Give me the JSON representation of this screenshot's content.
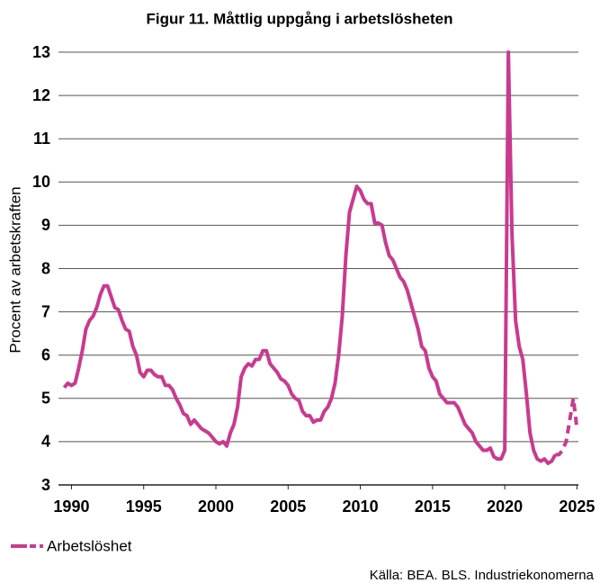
{
  "chart_data": {
    "type": "line",
    "title": "Figur 11. Måttlig uppgång i arbetslösheten",
    "y_label": "Procent av arbetskraften",
    "source": "Källa: BEA. BLS. Industriekonomerna",
    "x": [
      1989.5,
      1989.75,
      1990,
      1990.25,
      1990.5,
      1990.75,
      1991,
      1991.25,
      1991.5,
      1991.75,
      1992,
      1992.25,
      1992.5,
      1992.75,
      1993,
      1993.25,
      1993.5,
      1993.75,
      1994,
      1994.25,
      1994.5,
      1994.75,
      1995,
      1995.25,
      1995.5,
      1995.75,
      1996,
      1996.25,
      1996.5,
      1996.75,
      1997,
      1997.25,
      1997.5,
      1997.75,
      1998,
      1998.25,
      1998.5,
      1998.75,
      1999,
      1999.25,
      1999.5,
      1999.75,
      2000,
      2000.25,
      2000.5,
      2000.75,
      2001,
      2001.25,
      2001.5,
      2001.75,
      2002,
      2002.25,
      2002.5,
      2002.75,
      2003,
      2003.25,
      2003.5,
      2003.75,
      2004,
      2004.25,
      2004.5,
      2004.75,
      2005,
      2005.25,
      2005.5,
      2005.75,
      2006,
      2006.25,
      2006.5,
      2006.75,
      2007,
      2007.25,
      2007.5,
      2007.75,
      2008,
      2008.25,
      2008.5,
      2008.75,
      2009,
      2009.25,
      2009.5,
      2009.75,
      2010,
      2010.25,
      2010.5,
      2010.75,
      2011,
      2011.25,
      2011.5,
      2011.75,
      2012,
      2012.25,
      2012.5,
      2012.75,
      2013,
      2013.25,
      2013.5,
      2013.75,
      2014,
      2014.25,
      2014.5,
      2014.75,
      2015,
      2015.25,
      2015.5,
      2015.75,
      2016,
      2016.25,
      2016.5,
      2016.75,
      2017,
      2017.25,
      2017.5,
      2017.75,
      2018,
      2018.25,
      2018.5,
      2018.75,
      2019,
      2019.25,
      2019.5,
      2019.75,
      2020,
      2020.25,
      2020.5,
      2020.75,
      2021,
      2021.25,
      2021.5,
      2021.75,
      2022,
      2022.25,
      2022.5,
      2022.75,
      2023,
      2023.25,
      2023.5,
      2023.75,
      2024,
      2024.25,
      2024.5,
      2024.75,
      2025
    ],
    "series": [
      {
        "name": "Arbetslöshet",
        "color": "#c93a8f",
        "values": [
          5.25,
          5.35,
          5.3,
          5.35,
          5.7,
          6.1,
          6.6,
          6.8,
          6.9,
          7.1,
          7.4,
          7.6,
          7.6,
          7.35,
          7.1,
          7.05,
          6.8,
          6.6,
          6.55,
          6.2,
          6.0,
          5.6,
          5.5,
          5.65,
          5.65,
          5.55,
          5.5,
          5.5,
          5.3,
          5.3,
          5.2,
          5.0,
          4.85,
          4.65,
          4.6,
          4.4,
          4.5,
          4.4,
          4.3,
          4.25,
          4.2,
          4.1,
          4.0,
          3.95,
          4.0,
          3.9,
          4.2,
          4.4,
          4.8,
          5.5,
          5.7,
          5.8,
          5.75,
          5.9,
          5.9,
          6.1,
          6.1,
          5.8,
          5.7,
          5.6,
          5.45,
          5.4,
          5.3,
          5.1,
          5.0,
          4.95,
          4.7,
          4.6,
          4.6,
          4.45,
          4.5,
          4.5,
          4.7,
          4.8,
          5.0,
          5.35,
          6.0,
          6.9,
          8.3,
          9.3,
          9.6,
          9.9,
          9.8,
          9.6,
          9.5,
          9.5,
          9.05,
          9.05,
          9.0,
          8.6,
          8.3,
          8.2,
          8.0,
          7.8,
          7.7,
          7.5,
          7.2,
          6.9,
          6.6,
          6.2,
          6.1,
          5.7,
          5.5,
          5.4,
          5.1,
          5.0,
          4.9,
          4.9,
          4.9,
          4.8,
          4.6,
          4.4,
          4.3,
          4.2,
          4.0,
          3.9,
          3.8,
          3.8,
          3.85,
          3.65,
          3.6,
          3.6,
          3.8,
          13.0,
          8.8,
          6.8,
          6.2,
          5.9,
          5.1,
          4.2,
          3.8,
          3.6,
          3.55,
          3.6,
          3.5,
          3.55,
          3.7,
          3.7,
          3.8,
          4.0,
          4.5,
          5.0,
          4.3
        ]
      }
    ],
    "dash_from_x": 2023.5,
    "xlim": [
      1989.1,
      2025.1
    ],
    "xticks": [
      1990,
      1995,
      2000,
      2005,
      2010,
      2015,
      2020,
      2025
    ],
    "ylim": [
      3,
      13
    ],
    "yticks": [
      3,
      4,
      5,
      6,
      7,
      8,
      9,
      10,
      11,
      12,
      13
    ],
    "grid": true
  }
}
